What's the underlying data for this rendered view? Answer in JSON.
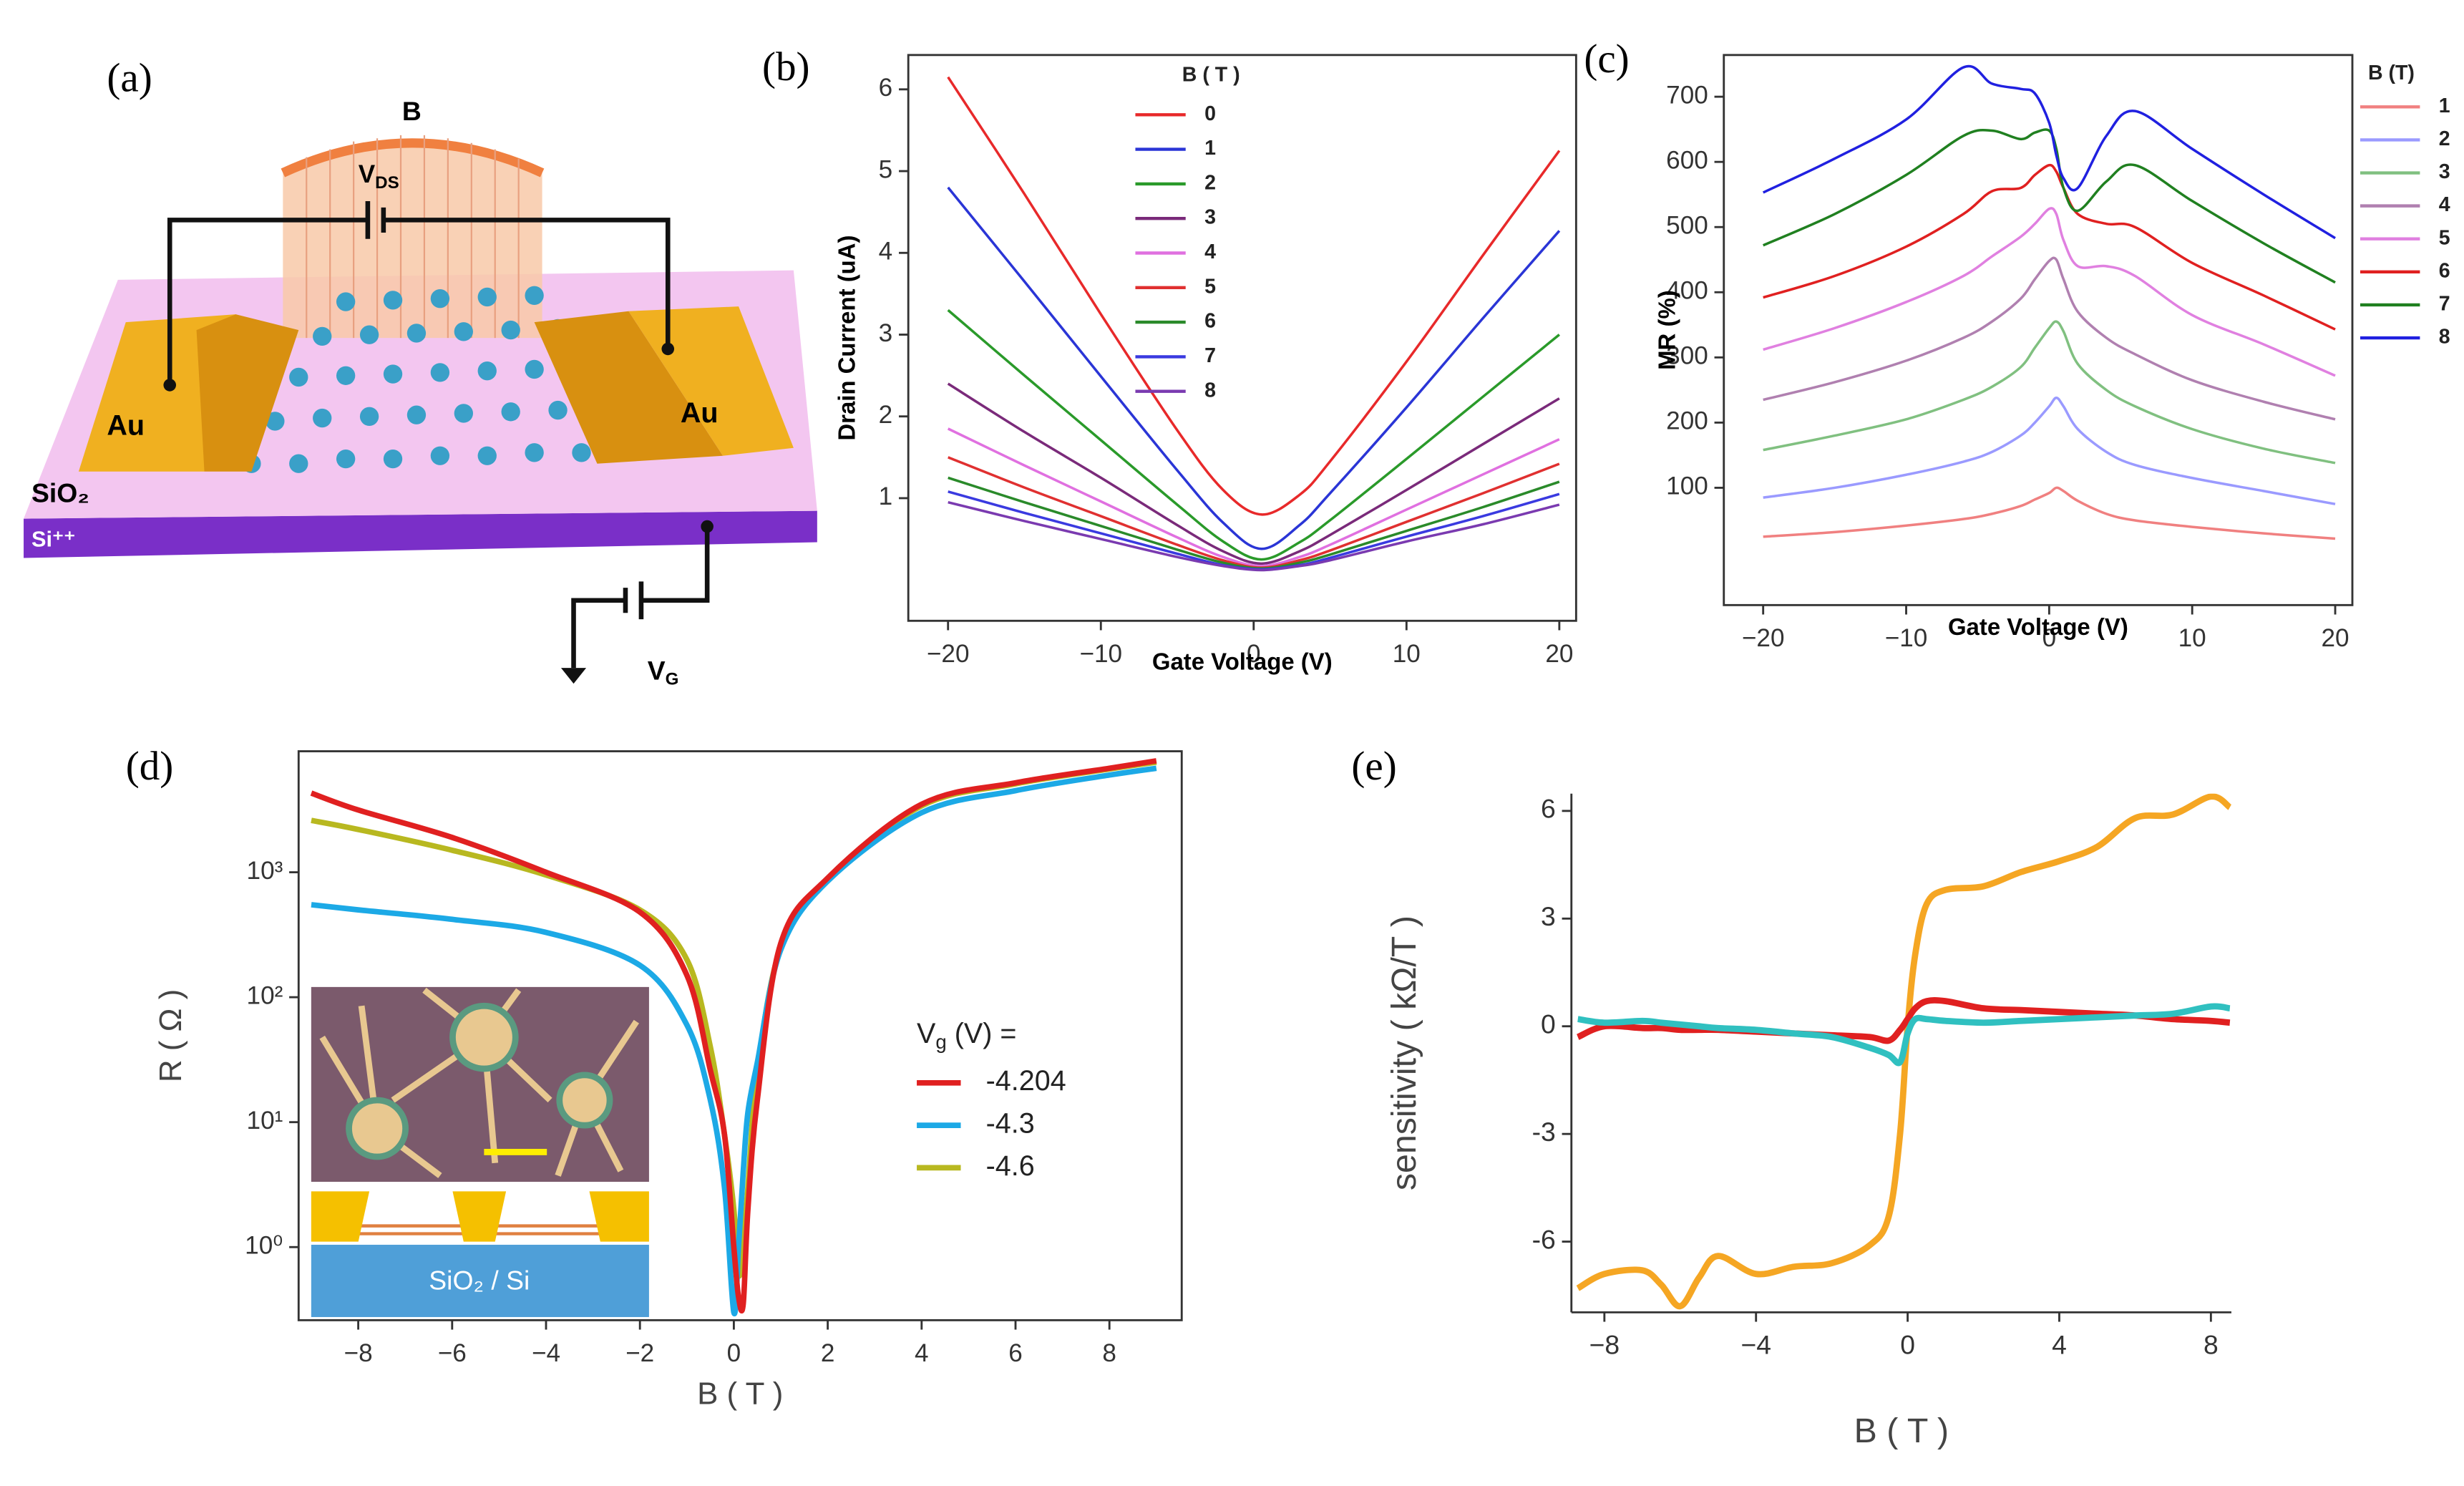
{
  "schematic": {
    "panel_label": "(a)",
    "field": "B",
    "vds": [
      "V",
      "DS"
    ],
    "electrode_left": "Au",
    "electrode_right": "Au",
    "oxide": "SiO₂",
    "substrate": "Si⁺⁺",
    "vg": [
      "V",
      "G"
    ]
  },
  "chart_data": [
    {
      "type": "line",
      "panel_label": "(b)",
      "y_label": "Drain Current (uA)",
      "x_label": "Gate Voltage (V)",
      "legend_title": [
        "B ( T )"
      ],
      "legend": "upper center",
      "spines": "box",
      "x": [
        -20,
        -15,
        -10,
        -5,
        -2,
        0.5,
        3,
        5,
        10,
        15,
        20
      ],
      "xlim": [
        -22.6,
        21.1
      ],
      "xticks": [
        {
          "value": -20,
          "label": "−20"
        },
        {
          "value": -10,
          "label": "−10"
        },
        0,
        10,
        20
      ],
      "ylim": [
        -0.5,
        6.42
      ],
      "yticks": [
        1,
        2,
        3,
        4,
        5,
        6
      ],
      "series": [
        {
          "name": "0",
          "color": "#e8292a",
          "values": [
            6.15,
            4.72,
            3.25,
            1.83,
            1.1,
            0.8,
            1.04,
            1.45,
            2.67,
            3.97,
            5.25
          ]
        },
        {
          "name": "1",
          "color": "#2a35d6",
          "values": [
            4.8,
            3.65,
            2.49,
            1.34,
            0.7,
            0.38,
            0.67,
            1.06,
            2.11,
            3.2,
            4.27
          ]
        },
        {
          "name": "2",
          "color": "#2a9a2a",
          "values": [
            3.3,
            2.5,
            1.71,
            0.92,
            0.47,
            0.25,
            0.46,
            0.73,
            1.48,
            2.24,
            3.0
          ]
        },
        {
          "name": "3",
          "color": "#7a2a7a",
          "values": [
            2.4,
            1.81,
            1.25,
            0.67,
            0.35,
            0.2,
            0.35,
            0.55,
            1.1,
            1.66,
            2.22
          ]
        },
        {
          "name": "4",
          "color": "#e070e0",
          "values": [
            1.85,
            1.4,
            0.96,
            0.52,
            0.28,
            0.17,
            0.28,
            0.43,
            0.86,
            1.29,
            1.72
          ]
        },
        {
          "name": "5",
          "color": "#e03030",
          "values": [
            1.5,
            1.13,
            0.78,
            0.43,
            0.24,
            0.15,
            0.24,
            0.36,
            0.71,
            1.06,
            1.42
          ]
        },
        {
          "name": "6",
          "color": "#2a8a2a",
          "values": [
            1.25,
            0.95,
            0.66,
            0.37,
            0.21,
            0.14,
            0.21,
            0.31,
            0.6,
            0.89,
            1.2
          ]
        },
        {
          "name": "7",
          "color": "#3a3ae0",
          "values": [
            1.08,
            0.82,
            0.57,
            0.32,
            0.18,
            0.13,
            0.18,
            0.27,
            0.53,
            0.78,
            1.05
          ]
        },
        {
          "name": "8",
          "color": "#7a3ab0",
          "values": [
            0.95,
            0.72,
            0.5,
            0.28,
            0.17,
            0.12,
            0.17,
            0.24,
            0.47,
            0.68,
            0.92
          ]
        }
      ]
    },
    {
      "type": "line",
      "panel_label": "(c)",
      "y_label": "MR (%)",
      "x_label": "Gate Voltage (V)",
      "legend_title": [
        "B (T)"
      ],
      "legend": "outside right",
      "spines": "box",
      "x": [
        -20,
        -15,
        -10,
        -6,
        -4,
        -2,
        -1,
        0,
        0.5,
        1,
        2,
        4,
        6,
        10,
        15,
        20
      ],
      "xlim": [
        -22.75,
        21.2
      ],
      "xticks": [
        {
          "value": -20,
          "label": "−20"
        },
        {
          "value": -10,
          "label": "−10"
        },
        0,
        10,
        20
      ],
      "ylim": [
        -80,
        764
      ],
      "yticks": [
        100,
        200,
        300,
        400,
        500,
        600,
        700
      ],
      "series": [
        {
          "name": "1",
          "color": "#f08080",
          "values": [
            25,
            32,
            42,
            52,
            60,
            72,
            82,
            92,
            100,
            95,
            80,
            60,
            50,
            40,
            30,
            22
          ]
        },
        {
          "name": "2",
          "color": "#9a9aff",
          "values": [
            85,
            100,
            120,
            140,
            155,
            180,
            200,
            225,
            238,
            225,
            190,
            155,
            135,
            115,
            95,
            75
          ]
        },
        {
          "name": "3",
          "color": "#80c080",
          "values": [
            158,
            180,
            205,
            235,
            255,
            285,
            315,
            345,
            355,
            340,
            290,
            250,
            225,
            190,
            160,
            138
          ]
        },
        {
          "name": "4",
          "color": "#b080b0",
          "values": [
            235,
            262,
            295,
            330,
            355,
            390,
            420,
            448,
            450,
            420,
            370,
            330,
            305,
            265,
            232,
            205
          ]
        },
        {
          "name": "5",
          "color": "#e080e0",
          "values": [
            312,
            345,
            385,
            425,
            455,
            485,
            505,
            528,
            520,
            480,
            440,
            440,
            425,
            365,
            320,
            272
          ]
        },
        {
          "name": "6",
          "color": "#e02020",
          "values": [
            392,
            425,
            470,
            520,
            555,
            560,
            580,
            595,
            585,
            560,
            520,
            505,
            500,
            445,
            395,
            343
          ]
        },
        {
          "name": "7",
          "color": "#208020",
          "values": [
            472,
            520,
            580,
            640,
            648,
            635,
            645,
            648,
            620,
            560,
            525,
            570,
            595,
            540,
            475,
            415
          ]
        },
        {
          "name": "8",
          "color": "#2020e0",
          "values": [
            553,
            605,
            665,
            745,
            720,
            712,
            705,
            660,
            610,
            575,
            560,
            640,
            678,
            620,
            550,
            483
          ]
        }
      ]
    },
    {
      "type": "line",
      "panel_label": "(d)",
      "y_label": "R ( Ω )",
      "x_label": "B ( T )",
      "legend_title": [
        "V",
        "g",
        " (V) ="
      ],
      "legend": "center right",
      "spines": "box",
      "log_y": true,
      "inset_label": "SiO₂ / Si",
      "x": [
        -9,
        -8,
        -6,
        -4,
        -2,
        -1,
        -0.5,
        -0.2,
        0,
        0.1,
        0.2,
        0.3,
        0.5,
        1,
        2,
        4,
        6,
        8,
        9
      ],
      "xlim": [
        -9.27,
        9.54
      ],
      "xticks": [
        {
          "value": -8,
          "label": "−8"
        },
        {
          "value": -6,
          "label": "−6"
        },
        {
          "value": -4,
          "label": "−4"
        },
        {
          "value": -2,
          "label": "−2"
        },
        0,
        2,
        4,
        6,
        8
      ],
      "ylim": [
        0.26,
        9300
      ],
      "yticks": [
        {
          "value": 1,
          "label": "10⁰"
        },
        {
          "value": 10,
          "label": "10¹"
        },
        {
          "value": 100,
          "label": "10²"
        },
        {
          "value": 1000,
          "label": "10³"
        }
      ],
      "series": [
        {
          "name": "-4.6",
          "color": "#b8b820",
          "values": [
            2600,
            2200,
            1500,
            950,
            500,
            200,
            40,
            8,
            2,
            0.6,
            1,
            3,
            25,
            250,
            880,
            3400,
            5100,
            6700,
            7600
          ]
        },
        {
          "name": "-4.3",
          "color": "#1ca9e6",
          "values": [
            550,
            500,
            420,
            330,
            180,
            60,
            15,
            3,
            0.3,
            1,
            4,
            12,
            30,
            240,
            850,
            3000,
            4500,
            6000,
            6800
          ]
        },
        {
          "name": "-4.204",
          "color": "#e02020",
          "values": [
            4300,
            3150,
            1900,
            1000,
            480,
            150,
            26,
            8,
            1,
            0.4,
            0.35,
            2,
            15,
            270,
            900,
            3500,
            5200,
            6800,
            7800
          ]
        }
      ]
    },
    {
      "type": "line",
      "panel_label": "(e)",
      "y_label": "sensitivity ( kΩ/T )",
      "x_label": "B ( T )",
      "spines": "left-bottom",
      "x": [
        -8.7,
        -8,
        -7,
        -6.5,
        -6,
        -5.5,
        -5,
        -4,
        -3,
        -2,
        -1,
        -0.5,
        -0.2,
        0,
        0.2,
        0.5,
        1,
        2,
        3,
        4,
        5,
        6,
        7,
        8,
        8.5
      ],
      "xlim": [
        -8.87,
        8.54
      ],
      "xticks": [
        {
          "value": -8,
          "label": "−8"
        },
        {
          "value": -4,
          "label": "−4"
        },
        0,
        4,
        8
      ],
      "ylim": [
        -7.97,
        6.48
      ],
      "yticks": [
        -6,
        -3,
        0,
        3,
        6
      ],
      "series": [
        {
          "color": "#f5a623",
          "values": [
            -7.3,
            -6.9,
            -6.8,
            -7.2,
            -7.8,
            -7.0,
            -6.4,
            -6.9,
            -6.7,
            -6.6,
            -6.1,
            -5.3,
            -3,
            0,
            2,
            3.4,
            3.8,
            3.9,
            4.3,
            4.6,
            5.0,
            5.8,
            5.9,
            6.4,
            6.1
          ]
        },
        {
          "color": "#e02020",
          "values": [
            -0.3,
            0,
            -0.05,
            -0.05,
            -0.1,
            -0.1,
            -0.1,
            -0.15,
            -0.2,
            -0.25,
            -0.3,
            -0.4,
            -0.1,
            0.2,
            0.5,
            0.7,
            0.7,
            0.5,
            0.45,
            0.4,
            0.35,
            0.3,
            0.2,
            0.15,
            0.1
          ]
        },
        {
          "color": "#30c0c0",
          "values": [
            0.2,
            0.1,
            0.15,
            0.1,
            0.05,
            0,
            -0.05,
            -0.1,
            -0.2,
            -0.3,
            -0.6,
            -0.8,
            -1.0,
            -0.2,
            0.2,
            0.2,
            0.15,
            0.1,
            0.15,
            0.2,
            0.25,
            0.3,
            0.35,
            0.55,
            0.5
          ]
        }
      ]
    }
  ]
}
